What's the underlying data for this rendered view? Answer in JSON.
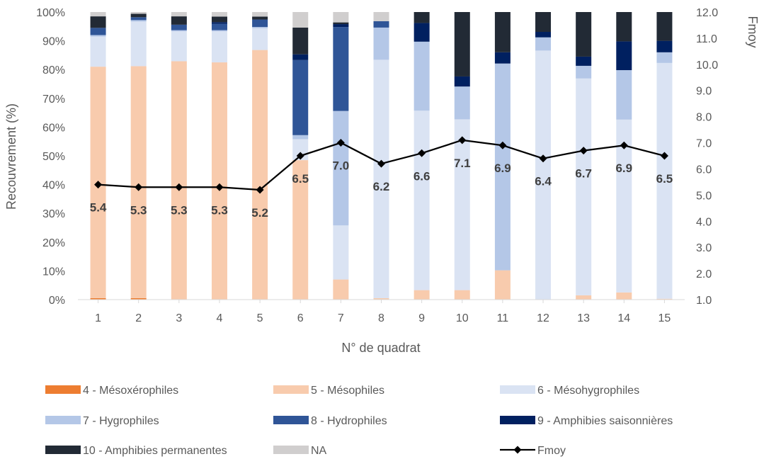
{
  "chart_data": {
    "type": "bar",
    "stacked": true,
    "xlabel": "N° de quadrat",
    "ylabel": "Recouvrement (%)",
    "y2label": "Fmoy",
    "categories": [
      "1",
      "2",
      "3",
      "4",
      "5",
      "6",
      "7",
      "8",
      "9",
      "10",
      "11",
      "12",
      "13",
      "14",
      "15"
    ],
    "ylim": [
      0,
      100
    ],
    "y_ticks": [
      "0%",
      "10%",
      "20%",
      "30%",
      "40%",
      "50%",
      "60%",
      "70%",
      "80%",
      "90%",
      "100%"
    ],
    "y2lim": [
      1.0,
      12.0
    ],
    "y2_ticks": [
      "1.0",
      "2.0",
      "3.0",
      "4.0",
      "5.0",
      "6.0",
      "7.0",
      "8.0",
      "9.0",
      "10.0",
      "11.0",
      "12.0"
    ],
    "grid": false,
    "legend_position": "bottom",
    "series": [
      {
        "name": "4 - Mésoxérophiles",
        "color": "#ED7D31",
        "values": [
          0.5,
          0.5,
          0,
          0,
          0,
          0,
          0,
          0,
          0,
          0,
          0,
          0,
          0,
          0,
          0
        ]
      },
      {
        "name": "5 - Mésophiles",
        "color": "#F8CBAD",
        "values": [
          80.5,
          80.7,
          82.9,
          82.5,
          86.8,
          48.5,
          7,
          0.5,
          3.3,
          3.3,
          10.2,
          0,
          1.5,
          2.5,
          0.3
        ]
      },
      {
        "name": "6 - Mésohygrophiles",
        "color": "#DAE3F3",
        "values": [
          10.5,
          15.5,
          10.4,
          10.8,
          7.6,
          7.3,
          18.8,
          82.9,
          62.4,
          59.4,
          0,
          86.6,
          75.4,
          60.1,
          82
        ]
      },
      {
        "name": "7 - Hygrophiles",
        "color": "#B4C7E7",
        "values": [
          0.5,
          0.5,
          0.4,
          0.4,
          0.4,
          1.4,
          39.8,
          11.2,
          24,
          11.4,
          71.9,
          4.6,
          4.4,
          17.2,
          3.7
        ]
      },
      {
        "name": "8 - Hydrophiles",
        "color": "#2F5597",
        "values": [
          2.5,
          1,
          1.9,
          2.2,
          2.6,
          26.1,
          29.2,
          2.2,
          0,
          0,
          0,
          0,
          0,
          0,
          0
        ]
      },
      {
        "name": "9 - Amphibies saisonnières",
        "color": "#002060",
        "values": [
          0,
          0,
          0,
          0.6,
          0,
          2,
          1,
          0,
          6.5,
          3.5,
          3.9,
          1.9,
          3.2,
          10,
          4
        ]
      },
      {
        "name": "10 - Amphibies permanentes",
        "color": "#222A35",
        "values": [
          4,
          1.2,
          2.9,
          1.9,
          1,
          9.3,
          0.6,
          0,
          3.8,
          22.4,
          14,
          6.9,
          15.5,
          10.2,
          10
        ]
      },
      {
        "name": "NA",
        "color": "#D0CECE",
        "values": [
          1.5,
          0.6,
          1.5,
          1.6,
          1.6,
          5.4,
          3.6,
          3.2,
          0,
          0,
          0,
          0,
          0,
          0,
          0
        ]
      }
    ],
    "line_series": {
      "name": "Fmoy",
      "color": "#000000",
      "axis": "secondary",
      "values": [
        5.4,
        5.3,
        5.3,
        5.3,
        5.2,
        6.5,
        7.0,
        6.2,
        6.6,
        7.1,
        6.9,
        6.4,
        6.7,
        6.9,
        6.5
      ],
      "labels": [
        "5.4",
        "5.3",
        "5.3",
        "5.3",
        "5.2",
        "6.5",
        "7.0",
        "6.2",
        "6.6",
        "7.1",
        "6.9",
        "6.4",
        "6.7",
        "6.9",
        "6.5"
      ]
    }
  }
}
